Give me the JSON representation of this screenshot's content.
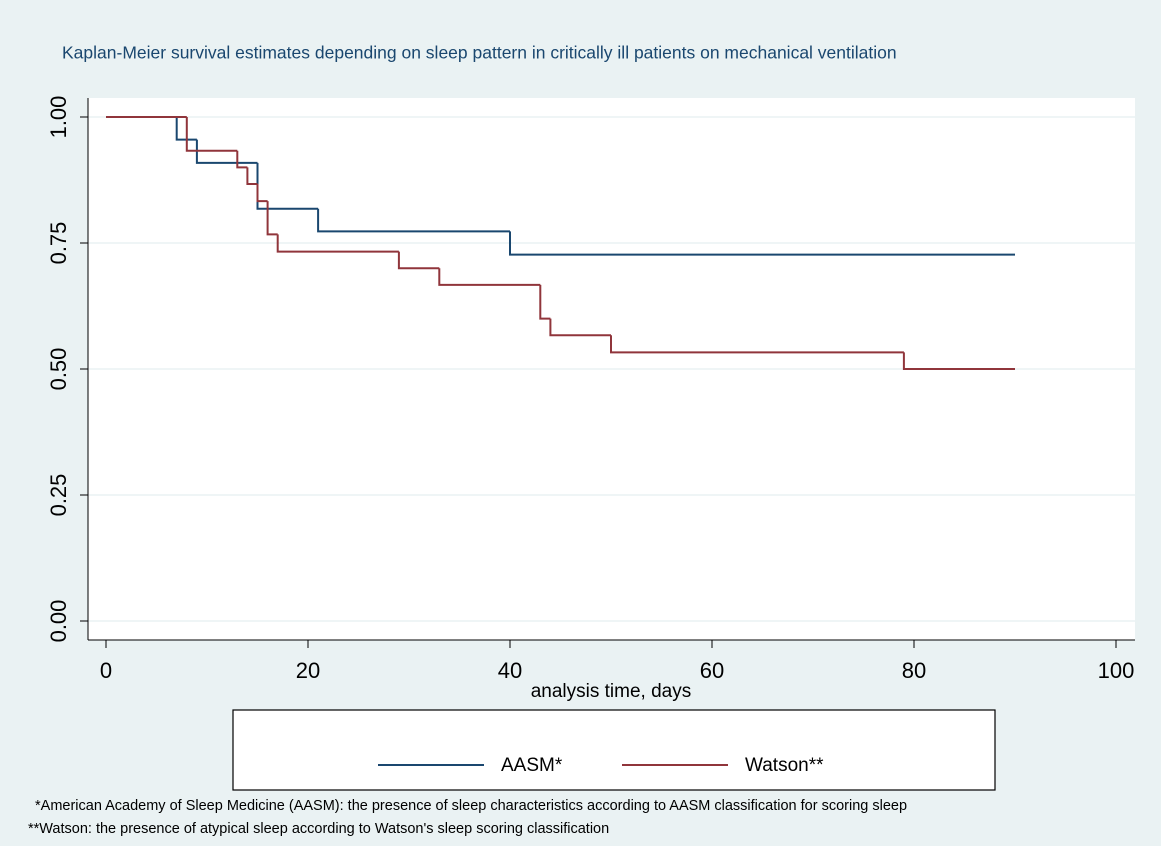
{
  "chart_data": {
    "type": "line",
    "step": "post",
    "title": "Kaplan-Meier survival estimates depending on sleep pattern in critically ill patients on mechanical ventilation",
    "xlabel": "analysis time, days",
    "xlim": [
      0,
      100
    ],
    "xticks": [
      0,
      20,
      40,
      60,
      80,
      100
    ],
    "ylim": [
      0,
      1
    ],
    "yticks": [
      {
        "value": 0,
        "label": "0.00"
      },
      {
        "value": 0.25,
        "label": "0.25"
      },
      {
        "value": 0.5,
        "label": "0.50"
      },
      {
        "value": 0.75,
        "label": "0.75"
      },
      {
        "value": 1,
        "label": "1.00"
      }
    ],
    "grid": true,
    "legend": "bottom",
    "series": [
      {
        "name": "AASM*",
        "color": "#1a476f",
        "x": [
          0,
          7,
          9,
          15,
          21,
          40,
          90
        ],
        "values": [
          1,
          0.955,
          0.909,
          0.818,
          0.773,
          0.727,
          0.727
        ]
      },
      {
        "name": "Watson**",
        "color": "#90353b",
        "x": [
          0,
          8,
          13,
          14,
          15,
          16,
          17,
          29,
          33,
          43,
          44,
          50,
          79,
          90
        ],
        "values": [
          1,
          0.933,
          0.9,
          0.867,
          0.833,
          0.767,
          0.733,
          0.7,
          0.667,
          0.6,
          0.567,
          0.533,
          0.5,
          0.5
        ]
      }
    ],
    "notes": [
      "*American Academy of Sleep Medicine (AASM): the presence of sleep characteristics according to AASM classification for scoring sleep",
      "**Watson: the presence of atypical sleep according to Watson's sleep scoring classification"
    ]
  }
}
